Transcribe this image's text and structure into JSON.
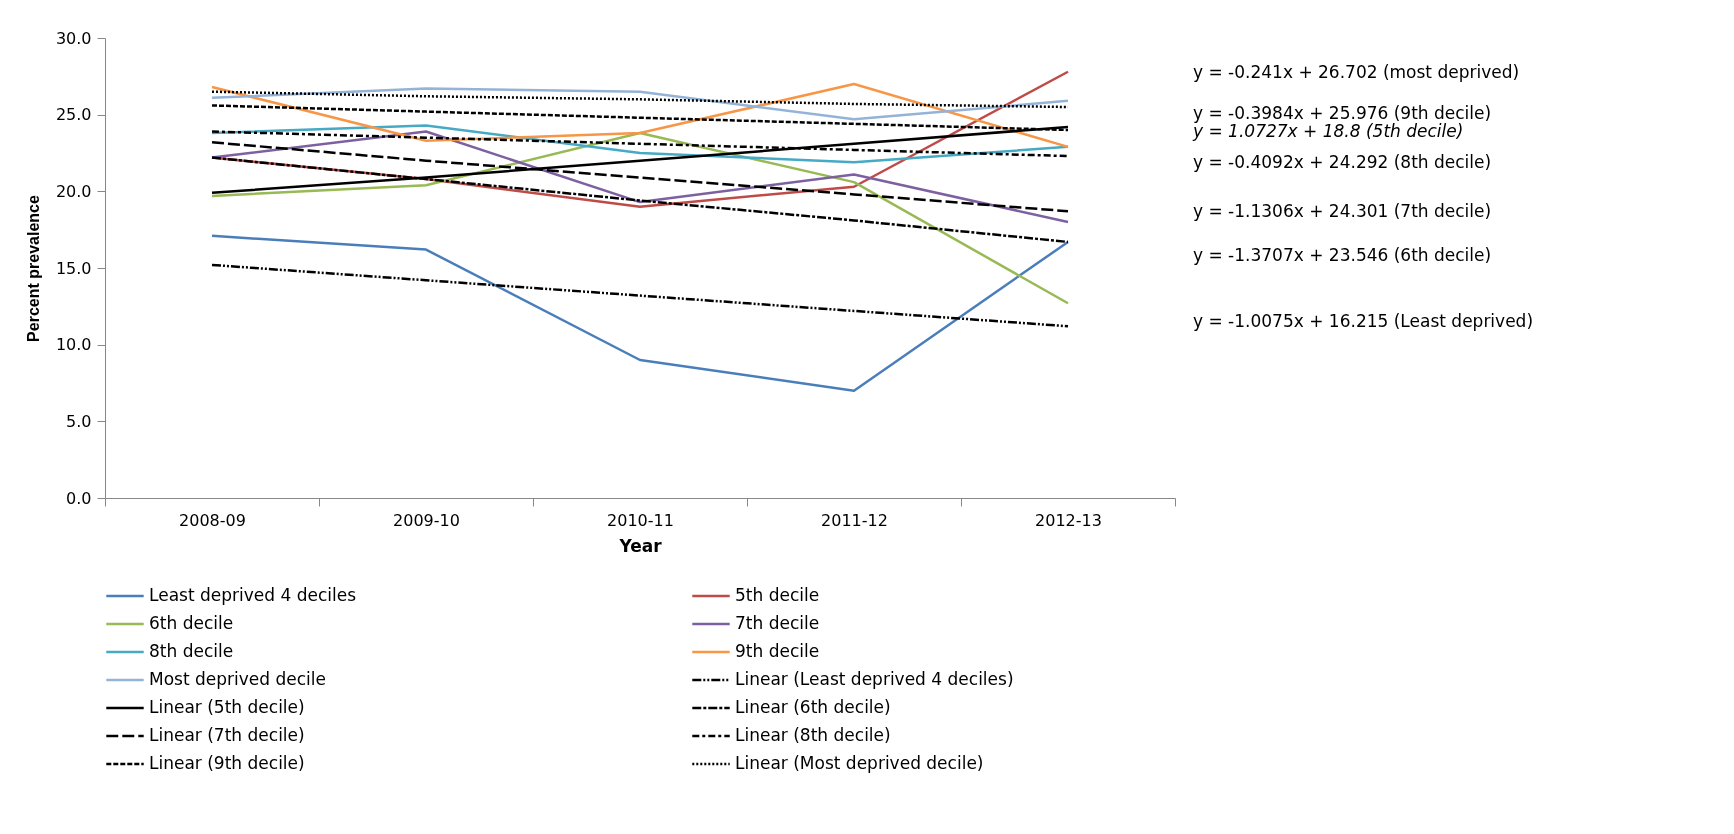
{
  "chart_data": {
    "type": "line",
    "xlabel": "Year",
    "ylabel": "Percent prevalence",
    "categories": [
      "2008-09",
      "2009-10",
      "2010-11",
      "2011-12",
      "2012-13"
    ],
    "ylim": [
      0,
      30
    ],
    "yticks": [
      {
        "value": 0,
        "label": "0.0"
      },
      {
        "value": 5,
        "label": "5.0"
      },
      {
        "value": 10,
        "label": "10.0"
      },
      {
        "value": 15,
        "label": "15.0"
      },
      {
        "value": 20,
        "label": "20.0"
      },
      {
        "value": 25,
        "label": "25.0"
      },
      {
        "value": 30,
        "label": "30.0"
      }
    ],
    "grid": false,
    "legend": "bottom",
    "marker": "none",
    "series": [
      {
        "name": "Least deprived 4 deciles",
        "color": "#4a7ebb",
        "line_style": "solid",
        "values": [
          17.1,
          16.2,
          9.0,
          7.0,
          16.7
        ]
      },
      {
        "name": "5th decile",
        "color": "#be4b48",
        "line_style": "solid",
        "values": [
          22.2,
          20.8,
          19.0,
          20.3,
          27.8
        ]
      },
      {
        "name": "6th decile",
        "color": "#98b954",
        "line_style": "solid",
        "values": [
          19.7,
          20.4,
          23.8,
          20.6,
          12.7
        ]
      },
      {
        "name": "7th decile",
        "color": "#7d60a0",
        "line_style": "solid",
        "values": [
          22.2,
          23.9,
          19.3,
          21.1,
          18.0
        ]
      },
      {
        "name": "8th decile",
        "color": "#46aac5",
        "line_style": "solid",
        "values": [
          23.8,
          24.3,
          22.5,
          21.9,
          22.9
        ]
      },
      {
        "name": "9th decile",
        "color": "#f79646",
        "line_style": "solid",
        "values": [
          26.8,
          23.3,
          23.8,
          27.0,
          22.9
        ]
      },
      {
        "name": "Most deprived decile",
        "color": "#95b3d7",
        "line_style": "solid",
        "values": [
          26.1,
          26.7,
          26.5,
          24.7,
          25.9
        ]
      },
      {
        "name": "Linear (Least deprived 4 deciles)",
        "color": "#000000",
        "line_style": "dashed",
        "values": [
          15.2,
          14.2,
          13.2,
          12.2,
          11.2
        ]
      },
      {
        "name": "Linear (5th decile)",
        "color": "#000000",
        "line_style": "solid",
        "values": [
          19.9,
          20.9,
          22.0,
          23.1,
          24.2
        ]
      },
      {
        "name": "Linear (6th decile)",
        "color": "#000000",
        "line_style": "dashed",
        "values": [
          22.2,
          20.8,
          19.4,
          18.1,
          16.7
        ]
      },
      {
        "name": "Linear (7th decile)",
        "color": "#000000",
        "line_style": "dashed",
        "values": [
          23.2,
          22.0,
          20.9,
          19.8,
          18.7
        ]
      },
      {
        "name": "Linear (8th decile)",
        "color": "#000000",
        "line_style": "dashed",
        "values": [
          23.9,
          23.5,
          23.1,
          22.7,
          22.3
        ]
      },
      {
        "name": "Linear (9th decile)",
        "color": "#000000",
        "line_style": "dashed",
        "values": [
          25.6,
          25.2,
          24.8,
          24.4,
          24.0
        ]
      },
      {
        "name": "Linear (Most deprived decile)",
        "color": "#000000",
        "line_style": "dotted",
        "values": [
          26.5,
          26.2,
          26.0,
          25.7,
          25.5
        ]
      }
    ],
    "annotations": [
      "y = -0.241x + 26.702 (most deprived)",
      "y = -0.3984x + 25.976 (9th decile)",
      "y = 1.0727x + 18.8 (5th decile)",
      "y = -0.4092x + 24.292 (8th decile)",
      "y = -1.1306x + 24.301 (7th decile)",
      "y = -1.3707x + 23.546 (6th decile)",
      "y = -1.0075x + 16.215 (Least deprived)"
    ]
  }
}
